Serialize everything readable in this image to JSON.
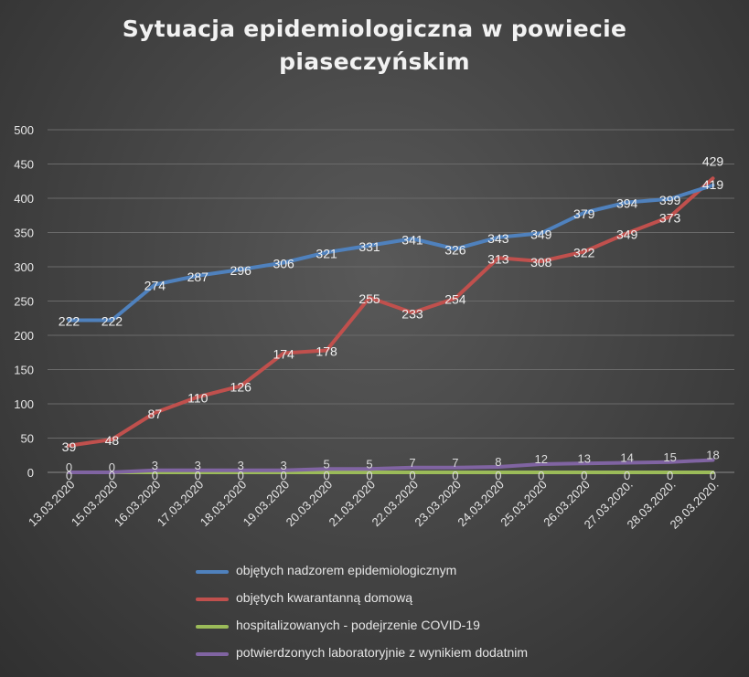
{
  "chart_data": {
    "type": "line",
    "title_lines": [
      "Sytuacja epidemiologiczna w powiecie",
      "piaseczyńskim"
    ],
    "categories": [
      "13.03.2020",
      "15.03.2020",
      "16.03.2020",
      "17.03.2020",
      "18.03.2020",
      "19.03.2020",
      "20.03.2020",
      "21.03.2020",
      "22.03.2020",
      "23.03.2020",
      "24.03.2020",
      "25.03.2020",
      "26.03.2020",
      "27.03.2020.",
      "28.03.2020.",
      "29.03.2020."
    ],
    "ylim": [
      0,
      500
    ],
    "yticks": [
      0,
      50,
      100,
      150,
      200,
      250,
      300,
      350,
      400,
      450,
      500
    ],
    "grid": true,
    "legend_position": "bottom",
    "series": [
      {
        "name": "objętych nadzorem epidemiologicznym",
        "color": "#4f81bd",
        "values": [
          222,
          222,
          274,
          287,
          296,
          306,
          321,
          331,
          341,
          326,
          343,
          349,
          379,
          394,
          399,
          419
        ]
      },
      {
        "name": "objętych kwarantanną domową",
        "color": "#c0504d",
        "values": [
          39,
          48,
          87,
          110,
          126,
          174,
          178,
          255,
          233,
          254,
          313,
          308,
          322,
          349,
          373,
          429
        ]
      },
      {
        "name": "hospitalizowanych  - podejrzenie COVID-19",
        "color": "#9bbb59",
        "values": [
          0,
          0,
          0,
          0,
          0,
          0,
          0,
          0,
          0,
          0,
          0,
          0,
          0,
          0,
          0,
          0
        ]
      },
      {
        "name": "potwierdzonych laboratoryjnie z wynikiem dodatnim",
        "color": "#8064a2",
        "values": [
          0,
          0,
          3,
          3,
          3,
          3,
          5,
          5,
          7,
          7,
          8,
          12,
          13,
          14,
          15,
          18
        ]
      }
    ]
  }
}
